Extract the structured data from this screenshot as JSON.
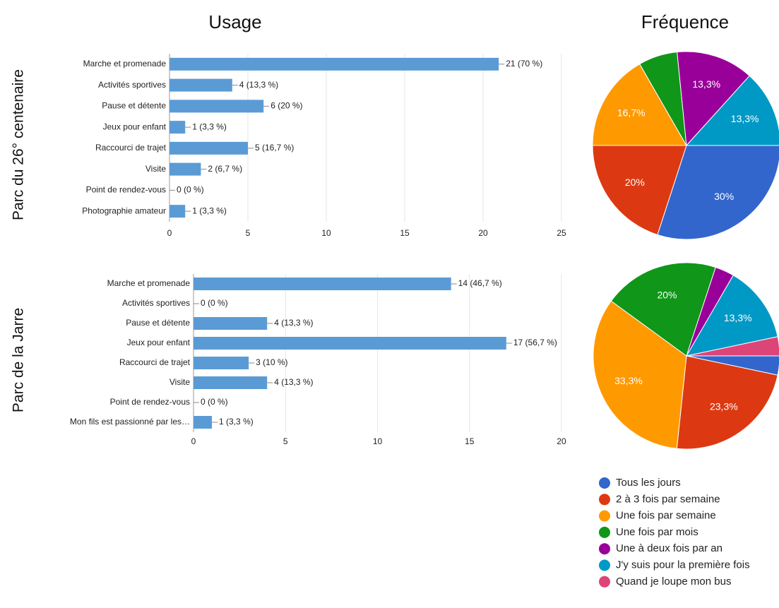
{
  "columns": [
    "Usage",
    "Fréquence"
  ],
  "rows": [
    "Parc du 26° centenaire",
    "Parc de la Jarre"
  ],
  "legend": [
    {
      "name": "Tous les jours",
      "color": "#3366cc"
    },
    {
      "name": "2 à 3 fois par semaine",
      "color": "#dc3912"
    },
    {
      "name": "Une fois par semaine",
      "color": "#ff9900"
    },
    {
      "name": "Une fois par mois",
      "color": "#109618"
    },
    {
      "name": "Une à deux fois par an",
      "color": "#990099"
    },
    {
      "name": "J'y suis pour la première fois",
      "color": "#0099c6"
    },
    {
      "name": "Quand je loupe mon bus",
      "color": "#dd4477"
    }
  ],
  "chart_data": [
    {
      "type": "hbar",
      "color": "#5b9bd5",
      "categories": [
        "Marche et promenade",
        "Activités sportives",
        "Pause et détente",
        "Jeux pour enfant",
        "Raccourci de trajet",
        "Visite",
        "Point de rendez-vous",
        "Photographie amateur"
      ],
      "values": [
        21,
        4,
        6,
        1,
        5,
        2,
        0,
        1
      ],
      "value_labels": [
        "21 (70 %)",
        "4 (13,3 %)",
        "6 (20 %)",
        "1 (3,3 %)",
        "5 (16,7 %)",
        "2 (6,7 %)",
        "0 (0 %)",
        "1 (3,3 %)"
      ],
      "xlim": [
        0,
        25
      ],
      "xticks": [
        0,
        5,
        10,
        15,
        20,
        25
      ],
      "grid": true
    },
    {
      "type": "pie",
      "start_angle": 90,
      "values": [
        30,
        20,
        16.7,
        6.7,
        13.3,
        13.3
      ],
      "value_labels": [
        "30%",
        "20%",
        "16,7%",
        null,
        "13,3%",
        "13,3%"
      ]
    },
    {
      "type": "hbar",
      "color": "#5b9bd5",
      "categories": [
        "Marche et promenade",
        "Activités sportives",
        "Pause et détente",
        "Jeux pour enfant",
        "Raccourci de trajet",
        "Visite",
        "Point de rendez-vous",
        "Mon fils est passionné par les…"
      ],
      "values": [
        14,
        0,
        4,
        17,
        3,
        4,
        0,
        1
      ],
      "value_labels": [
        "14 (46,7 %)",
        "0 (0 %)",
        "4 (13,3 %)",
        "17 (56,7 %)",
        "3 (10 %)",
        "4 (13,3 %)",
        "0 (0 %)",
        "1 (3,3 %)"
      ],
      "xlim": [
        0,
        20
      ],
      "xticks": [
        0,
        5,
        10,
        15,
        20
      ],
      "grid": true
    },
    {
      "type": "pie",
      "start_angle": 90,
      "values": [
        3.3,
        23.3,
        33.3,
        20,
        3.3,
        13.3,
        3.3
      ],
      "value_labels": [
        null,
        "23,3%",
        "33,3%",
        "20%",
        null,
        "13,3%",
        null
      ]
    }
  ]
}
